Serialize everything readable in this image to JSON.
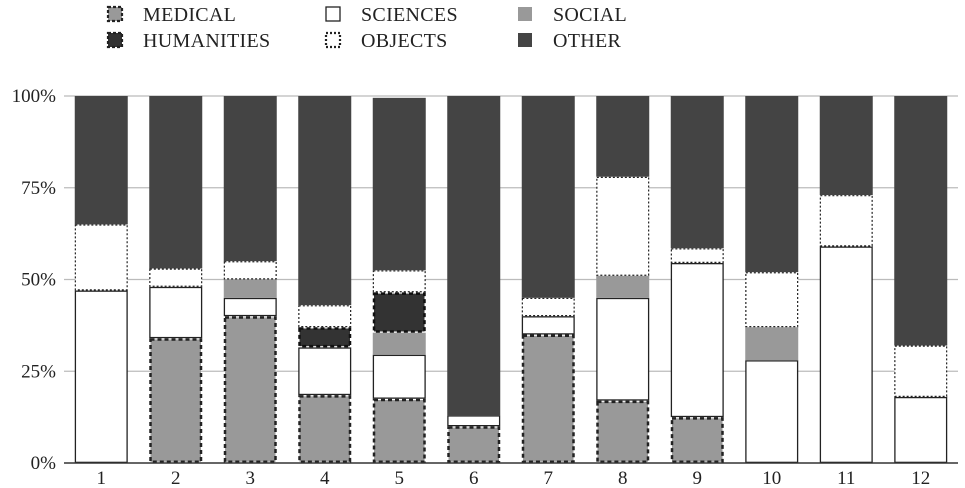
{
  "chart_data": {
    "type": "bar",
    "stacked": true,
    "normalized_percent": true,
    "title": "",
    "xlabel": "",
    "ylabel": "",
    "ylim": [
      0,
      100
    ],
    "yticks": [
      "0%",
      "25%",
      "50%",
      "75%",
      "100%"
    ],
    "ytick_values": [
      0,
      25,
      50,
      75,
      100
    ],
    "grid": "horizontal",
    "legend_position": "top",
    "categories": [
      "1",
      "2",
      "3",
      "4",
      "5",
      "6",
      "7",
      "8",
      "9",
      "10",
      "11",
      "12"
    ],
    "series": [
      {
        "name": "MEDICAL",
        "style": "medical",
        "values": [
          0,
          34,
          40,
          18.5,
          17.5,
          10,
          35,
          17,
          12.5,
          0,
          0,
          0
        ]
      },
      {
        "name": "SCIENCES",
        "style": "sciences",
        "values": [
          47,
          14,
          5,
          13,
          12,
          3,
          5,
          28,
          42,
          28,
          59,
          18
        ]
      },
      {
        "name": "SOCIAL",
        "style": "social",
        "values": [
          0,
          0,
          5,
          0,
          6,
          0,
          0,
          6,
          0,
          9,
          0,
          0
        ]
      },
      {
        "name": "HUMANITIES",
        "style": "humanities",
        "values": [
          0,
          0,
          0,
          5.5,
          11,
          0,
          0,
          0,
          0,
          0,
          0,
          0
        ]
      },
      {
        "name": "OBJECTS",
        "style": "objects",
        "values": [
          18,
          5,
          5,
          6,
          6,
          0,
          5,
          27,
          4,
          15,
          14,
          14
        ]
      },
      {
        "name": "OTHER",
        "style": "other",
        "values": [
          35,
          47,
          45,
          57,
          47,
          87,
          55,
          22,
          41.5,
          48,
          27,
          68
        ]
      }
    ],
    "legend": [
      {
        "label": "MEDICAL",
        "style": "medical"
      },
      {
        "label": "SCIENCES",
        "style": "sciences"
      },
      {
        "label": "SOCIAL",
        "style": "social"
      },
      {
        "label": "HUMANITIES",
        "style": "humanities"
      },
      {
        "label": "OBJECTS",
        "style": "objects"
      },
      {
        "label": "OTHER",
        "style": "other"
      }
    ],
    "colors": {
      "medical": "#999999",
      "sciences": "#ffffff",
      "social": "#999999",
      "humanities": "#333333",
      "objects": "#ffffff",
      "other": "#444444",
      "grid": "#bbbbbb",
      "axis": "#333333"
    }
  }
}
